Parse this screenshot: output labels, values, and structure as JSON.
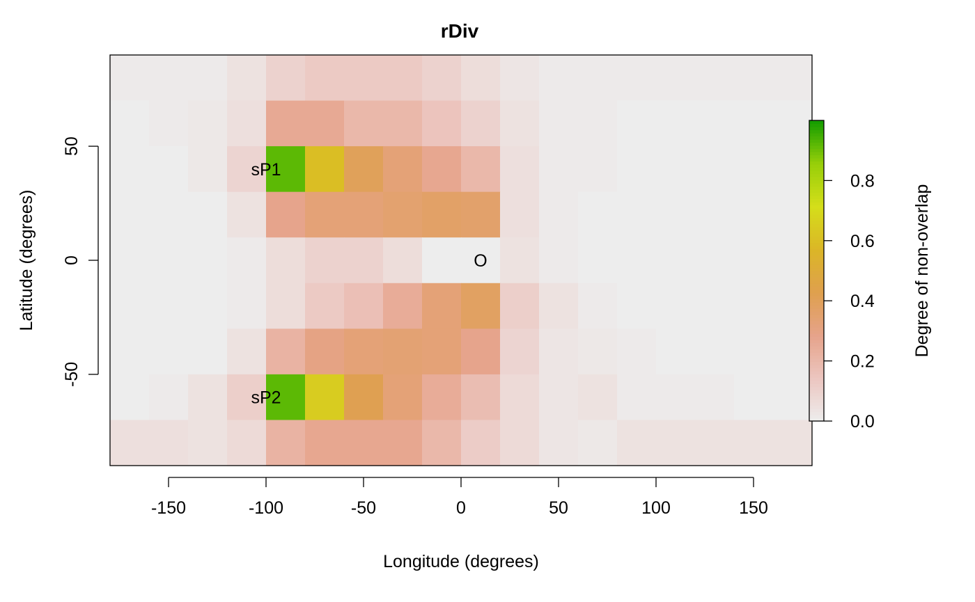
{
  "chart_data": {
    "type": "heatmap",
    "title": "rDiv",
    "xlabel": "Longitude (degrees)",
    "ylabel": "Latitude (degrees)",
    "xlim": [
      -180,
      180
    ],
    "ylim": [
      -90,
      90
    ],
    "x_ticks": [
      -150,
      -100,
      -50,
      0,
      50,
      100,
      150
    ],
    "x_tick_labels": [
      "-150",
      "-100",
      "-50",
      "0",
      "50",
      "100",
      "150"
    ],
    "y_ticks": [
      -50,
      0,
      50
    ],
    "y_tick_labels": [
      "-50",
      "0",
      "50"
    ],
    "x_edges": [
      -180,
      -160,
      -140,
      -120,
      -100,
      -80,
      -60,
      -40,
      -20,
      0,
      20,
      40,
      60,
      80,
      100,
      120,
      140,
      160,
      180
    ],
    "y_edges": [
      90,
      70,
      50,
      30,
      10,
      -10,
      -30,
      -50,
      -70,
      -90
    ],
    "values": [
      [
        0.01,
        0.01,
        0.01,
        0.04,
        0.1,
        0.13,
        0.13,
        0.13,
        0.1,
        0.06,
        0.03,
        0.01,
        0.01,
        0.01,
        0.01,
        0.01,
        0.01,
        0.01
      ],
      [
        0.0,
        0.01,
        0.02,
        0.05,
        0.26,
        0.26,
        0.2,
        0.2,
        0.15,
        0.1,
        0.04,
        0.01,
        0.01,
        0.0,
        0.0,
        0.0,
        0.0,
        0.0
      ],
      [
        0.0,
        0.0,
        0.02,
        0.09,
        0.92,
        0.6,
        0.4,
        0.33,
        0.27,
        0.2,
        0.05,
        0.01,
        0.01,
        0.0,
        0.0,
        0.0,
        0.0,
        0.0
      ],
      [
        0.0,
        0.0,
        0.0,
        0.04,
        0.28,
        0.33,
        0.33,
        0.35,
        0.37,
        0.36,
        0.05,
        0.01,
        0.0,
        0.0,
        0.0,
        0.0,
        0.0,
        0.0
      ],
      [
        0.0,
        0.0,
        0.0,
        0.01,
        0.06,
        0.1,
        0.1,
        0.06,
        0.0,
        0.0,
        0.04,
        0.01,
        0.0,
        0.0,
        0.0,
        0.0,
        0.0,
        0.0
      ],
      [
        0.0,
        0.0,
        0.0,
        0.01,
        0.06,
        0.13,
        0.17,
        0.25,
        0.33,
        0.38,
        0.11,
        0.04,
        0.01,
        0.0,
        0.0,
        0.0,
        0.0,
        0.0
      ],
      [
        0.0,
        0.0,
        0.0,
        0.04,
        0.22,
        0.3,
        0.33,
        0.34,
        0.33,
        0.28,
        0.09,
        0.03,
        0.02,
        0.01,
        0.0,
        0.0,
        0.0,
        0.0
      ],
      [
        0.0,
        0.01,
        0.04,
        0.11,
        0.92,
        0.65,
        0.42,
        0.33,
        0.25,
        0.18,
        0.07,
        0.03,
        0.04,
        0.01,
        0.01,
        0.01,
        0.0,
        0.0
      ],
      [
        0.05,
        0.05,
        0.04,
        0.07,
        0.22,
        0.27,
        0.27,
        0.27,
        0.2,
        0.12,
        0.07,
        0.03,
        0.02,
        0.04,
        0.04,
        0.04,
        0.04,
        0.04
      ]
    ],
    "annotations": [
      {
        "text": "sP1",
        "lon": -100,
        "lat": 40
      },
      {
        "text": "sP2",
        "lon": -100,
        "lat": -60
      },
      {
        "text": "O",
        "lon": 10,
        "lat": 0
      }
    ],
    "legend": {
      "title": "Degree of non-overlap",
      "position": "right",
      "range": [
        0,
        1
      ],
      "ticks": [
        0.0,
        0.2,
        0.4,
        0.6,
        0.8
      ],
      "tick_labels": [
        "0.0",
        "0.2",
        "0.4",
        "0.6",
        "0.8"
      ],
      "colors": [
        "#EDEDED",
        "#ECC6C0",
        "#E6A38A",
        "#DFA04E",
        "#DBB627",
        "#D5DE1A",
        "#97CF09",
        "#129C00"
      ]
    },
    "grid": false
  }
}
